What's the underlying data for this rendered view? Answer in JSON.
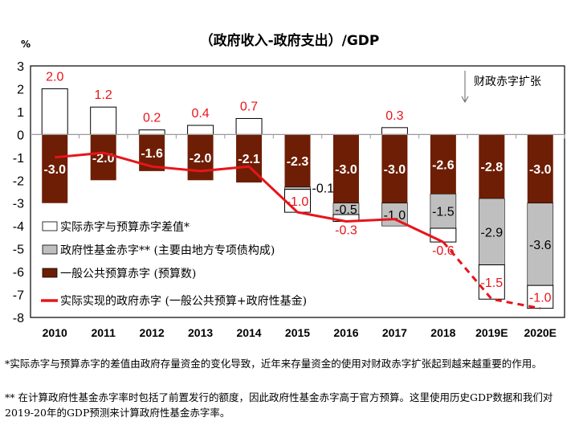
{
  "chart_data": {
    "type": "bar",
    "title": "（政府收入-政府支出）/GDP",
    "ylabel": "%",
    "ylim": [
      -8,
      3
    ],
    "yticks": [
      3,
      2,
      1,
      0,
      -1,
      -2,
      -3,
      -4,
      -5,
      -6,
      -7,
      -8
    ],
    "categories": [
      "2010",
      "2011",
      "2012",
      "2013",
      "2014",
      "2015",
      "2016",
      "2017",
      "2018",
      "2019E",
      "2020E"
    ],
    "series": [
      {
        "name": "一般公共预算赤字 (预算数)",
        "color": "#6e1e05",
        "values": [
          -3.0,
          -2.0,
          -1.6,
          -2.0,
          -2.1,
          -2.3,
          -3.0,
          -3.0,
          -2.6,
          -2.8,
          -3.0
        ]
      },
      {
        "name": "政府性基金赤字** (主要由地方专项债构成)",
        "color": "#bfbfbf",
        "values": [
          0,
          0,
          0,
          0,
          0,
          -0.1,
          -0.5,
          -1.0,
          -1.5,
          -2.9,
          -3.6
        ]
      },
      {
        "name": "实际赤字与预算赤字差值*",
        "color": "#ffffff",
        "values": [
          2.0,
          1.2,
          0.2,
          0.4,
          0.7,
          -1.0,
          -0.3,
          0.3,
          -0.6,
          -1.5,
          -1.0
        ]
      },
      {
        "name": "实际实现的政府赤字 (一般公共预算+政府性基金)",
        "type": "line",
        "color": "#e8141b",
        "values": [
          -1.0,
          -0.8,
          -1.4,
          -1.6,
          -1.4,
          -3.4,
          -3.8,
          -3.7,
          -4.7,
          -7.2,
          -7.6
        ],
        "dashed_from": "2018"
      }
    ],
    "annotation": "财政赤字扩张",
    "legend": "bottom-left inside"
  },
  "footnotes": [
    "*实际赤字与预算赤字的差值由政府存量资金的变化导致，近年来存量资金的使用对财政赤字扩张起到越来越重要的作用。",
    "** 在计算政府性基金赤字率时包括了前置发行的额度，因此政府性基金赤字高于官方预算。这里使用历史GDP数据和我们对2019-20年的GDP预测来计算政府性基金赤字率。"
  ]
}
